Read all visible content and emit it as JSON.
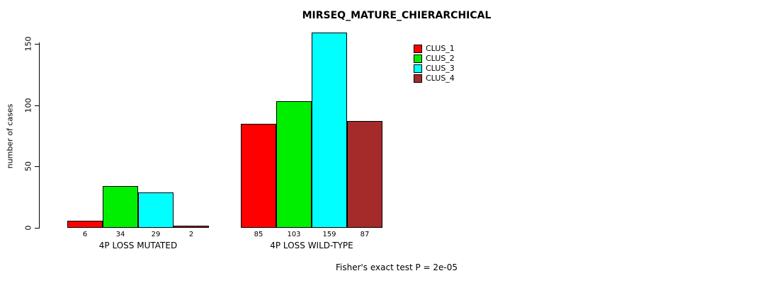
{
  "title": "MIRSEQ_MATURE_CHIERARCHICAL",
  "ylabel": "number of cases",
  "footer": "Fisher's exact test P = 2e-05",
  "chart_data": {
    "type": "bar",
    "title": "MIRSEQ_MATURE_CHIERARCHICAL",
    "xlabel": "",
    "ylabel": "number of cases",
    "groups": [
      "4P LOSS MUTATED",
      "4P LOSS WILD-TYPE"
    ],
    "series": [
      {
        "name": "CLUS_1",
        "color": "#ff0000",
        "values": [
          6,
          85
        ]
      },
      {
        "name": "CLUS_2",
        "color": "#00ee00",
        "values": [
          34,
          103
        ]
      },
      {
        "name": "CLUS_3",
        "color": "#00ffff",
        "values": [
          29,
          159
        ]
      },
      {
        "name": "CLUS_4",
        "color": "#a52a2a",
        "values": [
          2,
          87
        ]
      }
    ],
    "yticks": [
      0,
      50,
      100,
      150
    ],
    "ylim": [
      0,
      160
    ],
    "grid": false,
    "legend_position": "top-right",
    "annotation": "Fisher's exact test P = 2e-05"
  }
}
